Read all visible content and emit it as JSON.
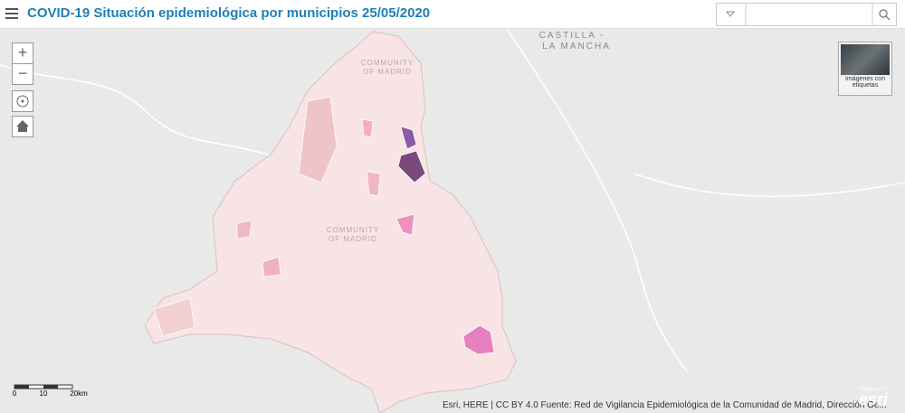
{
  "header": {
    "title": "COVID-19 Situación epidemiológica por municipios 25/05/2020"
  },
  "controls": {
    "zoom_in": "+",
    "zoom_out": "−"
  },
  "map_labels": [
    {
      "lines": [
        "CASTILLA -",
        "LA MANCHA"
      ]
    },
    {
      "lines": [
        "COMMUNITY",
        "OF MADRID"
      ]
    },
    {
      "lines": [
        "COMMUNITY",
        "OF MADRID"
      ]
    }
  ],
  "basemap": {
    "label_lines": [
      "Imágenes con",
      "etiquetas"
    ]
  },
  "scale": {
    "labels": [
      "0",
      "10",
      "20km"
    ]
  },
  "attribution": "Esri, HERE | CC BY 4.0 Fuente: Red de Vigilancia Epidemiológica de la Comunidad de Madrid, Dirección Ge...",
  "logo": {
    "powered": "POWERED BY",
    "brand": "esri"
  }
}
